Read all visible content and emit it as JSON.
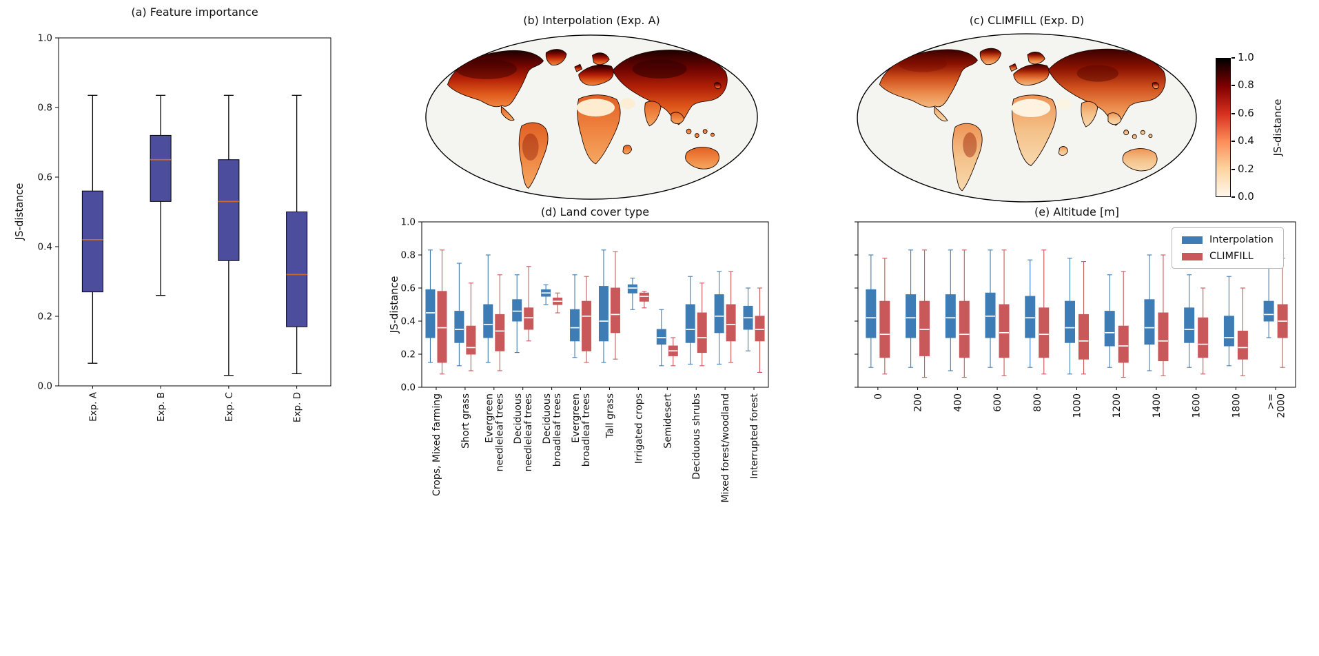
{
  "figure": {
    "background": "#ffffff"
  },
  "chart_data": [
    {
      "id": "a",
      "type": "boxplot",
      "title": "(a) Feature importance",
      "ylabel": "JS-distance",
      "ylim": [
        0.0,
        1.0
      ],
      "yticks": [
        0.0,
        0.2,
        0.4,
        0.6,
        0.8,
        1.0
      ],
      "grid": false,
      "categories": [
        "Exp. A",
        "Exp. B",
        "Exp. C",
        "Exp. D"
      ],
      "series": [
        {
          "name": "JS-distance",
          "color": "#4d4d9e",
          "edge": "#000000",
          "whisker_color": "#000000",
          "median_color": "#d2691e",
          "boxes": [
            {
              "lo": 0.065,
              "q1": 0.27,
              "med": 0.42,
              "q3": 0.56,
              "hi": 0.835
            },
            {
              "lo": 0.26,
              "q1": 0.53,
              "med": 0.65,
              "q3": 0.72,
              "hi": 0.835
            },
            {
              "lo": 0.03,
              "q1": 0.36,
              "med": 0.53,
              "q3": 0.65,
              "hi": 0.835
            },
            {
              "lo": 0.035,
              "q1": 0.17,
              "med": 0.32,
              "q3": 0.5,
              "hi": 0.835
            }
          ]
        }
      ]
    },
    {
      "id": "b",
      "type": "map",
      "title": "(b) Interpolation (Exp. A)",
      "value_label": "JS-distance"
    },
    {
      "id": "c",
      "type": "map",
      "title": "(c) CLIMFILL (Exp. D)",
      "value_label": "JS-distance",
      "colorbar": {
        "label": "JS-distance",
        "ticks": [
          "0.0",
          "0.2",
          "0.4",
          "0.6",
          "0.8",
          "1.0"
        ],
        "colors": [
          "#fff7ec",
          "#fdd49e",
          "#fc8d59",
          "#d7301f",
          "#7f0000",
          "#000000"
        ]
      }
    },
    {
      "id": "d",
      "type": "grouped_boxplot",
      "title": "(d) Land cover type",
      "ylabel": "JS-distance",
      "ylim": [
        0.0,
        1.0
      ],
      "yticks": [
        0.0,
        0.2,
        0.4,
        0.6,
        0.8,
        1.0
      ],
      "categories": [
        "Crops, Mixed farming",
        "Short grass",
        "Evergreen\nneedleleaf trees",
        "Deciduous\nneedleleaf trees",
        "Deciduous\nbroadleaf trees",
        "Evergreen\nbroadleaf trees",
        "Tall grass",
        "Irrigated crops",
        "Semidesert",
        "Deciduous shrubs",
        "Mixed forest/woodland",
        "Interrupted forest"
      ],
      "series": [
        {
          "name": "Interpolation",
          "color": "#3e7cb5",
          "median_color": "#ffffff",
          "boxes": [
            {
              "lo": 0.15,
              "q1": 0.3,
              "med": 0.45,
              "q3": 0.59,
              "hi": 0.83
            },
            {
              "lo": 0.13,
              "q1": 0.27,
              "med": 0.35,
              "q3": 0.46,
              "hi": 0.75
            },
            {
              "lo": 0.15,
              "q1": 0.3,
              "med": 0.38,
              "q3": 0.5,
              "hi": 0.8
            },
            {
              "lo": 0.21,
              "q1": 0.4,
              "med": 0.46,
              "q3": 0.53,
              "hi": 0.68
            },
            {
              "lo": 0.5,
              "q1": 0.55,
              "med": 0.57,
              "q3": 0.59,
              "hi": 0.62
            },
            {
              "lo": 0.18,
              "q1": 0.28,
              "med": 0.36,
              "q3": 0.47,
              "hi": 0.68
            },
            {
              "lo": 0.15,
              "q1": 0.28,
              "med": 0.4,
              "q3": 0.61,
              "hi": 0.83
            },
            {
              "lo": 0.47,
              "q1": 0.57,
              "med": 0.6,
              "q3": 0.62,
              "hi": 0.66
            },
            {
              "lo": 0.13,
              "q1": 0.26,
              "med": 0.3,
              "q3": 0.35,
              "hi": 0.47
            },
            {
              "lo": 0.14,
              "q1": 0.27,
              "med": 0.35,
              "q3": 0.5,
              "hi": 0.67
            },
            {
              "lo": 0.14,
              "q1": 0.33,
              "med": 0.43,
              "q3": 0.56,
              "hi": 0.7
            },
            {
              "lo": 0.22,
              "q1": 0.35,
              "med": 0.42,
              "q3": 0.49,
              "hi": 0.6
            }
          ]
        },
        {
          "name": "CLIMFILL",
          "color": "#c9585a",
          "median_color": "#ffffff",
          "boxes": [
            {
              "lo": 0.08,
              "q1": 0.15,
              "med": 0.36,
              "q3": 0.58,
              "hi": 0.83
            },
            {
              "lo": 0.1,
              "q1": 0.2,
              "med": 0.24,
              "q3": 0.37,
              "hi": 0.63
            },
            {
              "lo": 0.1,
              "q1": 0.22,
              "med": 0.34,
              "q3": 0.44,
              "hi": 0.68
            },
            {
              "lo": 0.28,
              "q1": 0.35,
              "med": 0.42,
              "q3": 0.48,
              "hi": 0.73
            },
            {
              "lo": 0.45,
              "q1": 0.5,
              "med": 0.52,
              "q3": 0.54,
              "hi": 0.57
            },
            {
              "lo": 0.15,
              "q1": 0.22,
              "med": 0.43,
              "q3": 0.52,
              "hi": 0.67
            },
            {
              "lo": 0.17,
              "q1": 0.33,
              "med": 0.44,
              "q3": 0.6,
              "hi": 0.82
            },
            {
              "lo": 0.48,
              "q1": 0.52,
              "med": 0.55,
              "q3": 0.57,
              "hi": 0.58
            },
            {
              "lo": 0.13,
              "q1": 0.19,
              "med": 0.22,
              "q3": 0.25,
              "hi": 0.3
            },
            {
              "lo": 0.13,
              "q1": 0.21,
              "med": 0.3,
              "q3": 0.45,
              "hi": 0.63
            },
            {
              "lo": 0.15,
              "q1": 0.28,
              "med": 0.38,
              "q3": 0.5,
              "hi": 0.7
            },
            {
              "lo": 0.09,
              "q1": 0.28,
              "med": 0.35,
              "q3": 0.43,
              "hi": 0.6
            }
          ]
        }
      ]
    },
    {
      "id": "e",
      "type": "grouped_boxplot",
      "title": "(e) Altitude [m]",
      "ylabel": "",
      "ylim": [
        0.0,
        1.0
      ],
      "yticks": [
        0.0,
        0.2,
        0.4,
        0.6,
        0.8,
        1.0
      ],
      "legend": [
        "Interpolation",
        "CLIMFILL"
      ],
      "legend_position": "upper right",
      "categories": [
        "0",
        "200",
        "400",
        "600",
        "800",
        "1000",
        "1200",
        "1400",
        "1600",
        "1800",
        ">=\n2000"
      ],
      "series": [
        {
          "name": "Interpolation",
          "color": "#3e7cb5",
          "median_color": "#ffffff",
          "boxes": [
            {
              "lo": 0.12,
              "q1": 0.3,
              "med": 0.42,
              "q3": 0.59,
              "hi": 0.8
            },
            {
              "lo": 0.12,
              "q1": 0.3,
              "med": 0.42,
              "q3": 0.56,
              "hi": 0.83
            },
            {
              "lo": 0.1,
              "q1": 0.3,
              "med": 0.42,
              "q3": 0.56,
              "hi": 0.83
            },
            {
              "lo": 0.12,
              "q1": 0.3,
              "med": 0.43,
              "q3": 0.57,
              "hi": 0.83
            },
            {
              "lo": 0.12,
              "q1": 0.3,
              "med": 0.42,
              "q3": 0.55,
              "hi": 0.77
            },
            {
              "lo": 0.08,
              "q1": 0.27,
              "med": 0.36,
              "q3": 0.52,
              "hi": 0.78
            },
            {
              "lo": 0.12,
              "q1": 0.25,
              "med": 0.33,
              "q3": 0.46,
              "hi": 0.68
            },
            {
              "lo": 0.1,
              "q1": 0.26,
              "med": 0.36,
              "q3": 0.53,
              "hi": 0.8
            },
            {
              "lo": 0.12,
              "q1": 0.27,
              "med": 0.35,
              "q3": 0.48,
              "hi": 0.68
            },
            {
              "lo": 0.13,
              "q1": 0.25,
              "med": 0.3,
              "q3": 0.43,
              "hi": 0.67
            },
            {
              "lo": 0.3,
              "q1": 0.4,
              "med": 0.44,
              "q3": 0.52,
              "hi": 0.76
            }
          ]
        },
        {
          "name": "CLIMFILL",
          "color": "#c9585a",
          "median_color": "#ffffff",
          "boxes": [
            {
              "lo": 0.08,
              "q1": 0.18,
              "med": 0.32,
              "q3": 0.52,
              "hi": 0.78
            },
            {
              "lo": 0.06,
              "q1": 0.19,
              "med": 0.35,
              "q3": 0.52,
              "hi": 0.83
            },
            {
              "lo": 0.06,
              "q1": 0.18,
              "med": 0.32,
              "q3": 0.52,
              "hi": 0.83
            },
            {
              "lo": 0.07,
              "q1": 0.18,
              "med": 0.33,
              "q3": 0.5,
              "hi": 0.83
            },
            {
              "lo": 0.08,
              "q1": 0.18,
              "med": 0.32,
              "q3": 0.48,
              "hi": 0.83
            },
            {
              "lo": 0.08,
              "q1": 0.17,
              "med": 0.28,
              "q3": 0.44,
              "hi": 0.76
            },
            {
              "lo": 0.06,
              "q1": 0.15,
              "med": 0.25,
              "q3": 0.37,
              "hi": 0.7
            },
            {
              "lo": 0.07,
              "q1": 0.16,
              "med": 0.28,
              "q3": 0.45,
              "hi": 0.8
            },
            {
              "lo": 0.08,
              "q1": 0.18,
              "med": 0.26,
              "q3": 0.42,
              "hi": 0.6
            },
            {
              "lo": 0.07,
              "q1": 0.17,
              "med": 0.24,
              "q3": 0.34,
              "hi": 0.6
            },
            {
              "lo": 0.12,
              "q1": 0.3,
              "med": 0.4,
              "q3": 0.5,
              "hi": 0.78
            }
          ]
        }
      ]
    }
  ]
}
